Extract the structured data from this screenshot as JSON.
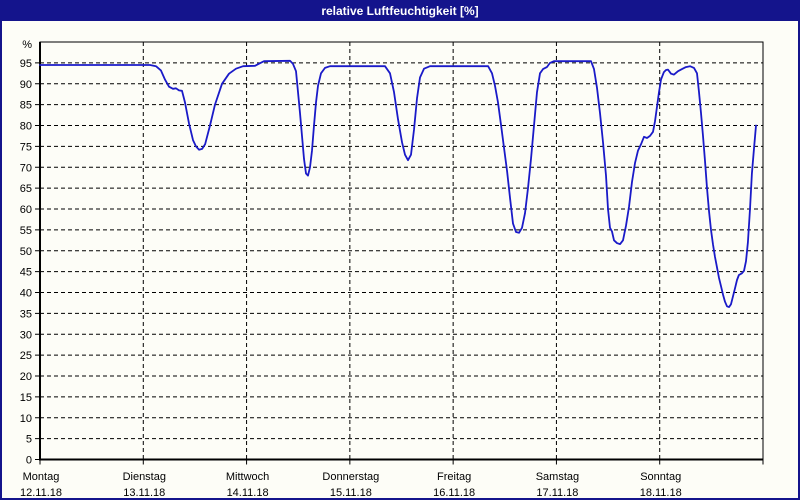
{
  "window": {
    "title": "relative Luftfeuchtigkeit [%]"
  },
  "colors": {
    "titlebar_bg": "#14148C",
    "window_border": "#14148C",
    "background": "#FDFDF7",
    "title_text": "#FFFFFF",
    "grid": "#000000",
    "axis_text": "#000000",
    "line": "#1A1AC8"
  },
  "chart_data": {
    "type": "line",
    "title": "relative Luftfeuchtigkeit [%]",
    "legend": "none",
    "grid": "dashed",
    "y_axis": {
      "unit_label": "%",
      "min": 0,
      "max": 100,
      "tick_step": 5,
      "tick_labels": [
        "0",
        "5",
        "10",
        "15",
        "20",
        "25",
        "30",
        "35",
        "40",
        "45",
        "50",
        "55",
        "60",
        "65",
        "70",
        "75",
        "80",
        "85",
        "90",
        "95"
      ]
    },
    "x_axis": {
      "unit": "days",
      "days": [
        {
          "name": "Montag",
          "date": "12.11.18"
        },
        {
          "name": "Dienstag",
          "date": "13.11.18"
        },
        {
          "name": "Mittwoch",
          "date": "14.11.18"
        },
        {
          "name": "Donnerstag",
          "date": "15.11.18"
        },
        {
          "name": "Freitag",
          "date": "16.11.18"
        },
        {
          "name": "Samstag",
          "date": "17.11.18"
        },
        {
          "name": "Sonntag",
          "date": "18.11.18"
        }
      ]
    },
    "series": [
      {
        "name": "relative Luftfeuchtigkeit",
        "unit": "%",
        "x_format": "days_since_monday_0000",
        "points": [
          [
            0,
            94.5
          ],
          [
            1.065,
            94.5
          ],
          [
            1.123,
            94.2
          ],
          [
            1.171,
            93.2
          ],
          [
            1.21,
            91
          ],
          [
            1.249,
            89.3
          ],
          [
            1.288,
            88.8
          ],
          [
            1.317,
            88.9
          ],
          [
            1.346,
            88.4
          ],
          [
            1.375,
            88.3
          ],
          [
            1.404,
            85.5
          ],
          [
            1.443,
            80.5
          ],
          [
            1.481,
            76.5
          ],
          [
            1.51,
            75
          ],
          [
            1.539,
            74.2
          ],
          [
            1.569,
            74.4
          ],
          [
            1.598,
            75.5
          ],
          [
            1.646,
            80
          ],
          [
            1.694,
            85
          ],
          [
            1.762,
            90
          ],
          [
            1.83,
            92.4
          ],
          [
            1.898,
            93.6
          ],
          [
            1.966,
            94.2
          ],
          [
            2.082,
            94.3
          ],
          [
            2.12,
            94.8
          ],
          [
            2.169,
            95.4
          ],
          [
            2.42,
            95.5
          ],
          [
            2.449,
            94.8
          ],
          [
            2.479,
            93
          ],
          [
            2.498,
            88
          ],
          [
            2.517,
            83
          ],
          [
            2.537,
            77.5
          ],
          [
            2.556,
            72
          ],
          [
            2.575,
            68.5
          ],
          [
            2.595,
            68
          ],
          [
            2.614,
            70
          ],
          [
            2.633,
            74
          ],
          [
            2.653,
            80
          ],
          [
            2.672,
            85.5
          ],
          [
            2.692,
            89.5
          ],
          [
            2.721,
            92.5
          ],
          [
            2.759,
            93.8
          ],
          [
            2.808,
            94.2
          ],
          [
            3.34,
            94.2
          ],
          [
            3.389,
            92.5
          ],
          [
            3.427,
            88
          ],
          [
            3.466,
            81.5
          ],
          [
            3.505,
            76
          ],
          [
            3.534,
            73
          ],
          [
            3.563,
            71.7
          ],
          [
            3.592,
            73
          ],
          [
            3.621,
            79
          ],
          [
            3.65,
            86.5
          ],
          [
            3.679,
            91.5
          ],
          [
            3.718,
            93.6
          ],
          [
            3.776,
            94.2
          ],
          [
            4.338,
            94.2
          ],
          [
            4.376,
            92.5
          ],
          [
            4.405,
            89.5
          ],
          [
            4.434,
            85.5
          ],
          [
            4.464,
            80
          ],
          [
            4.493,
            74.5
          ],
          [
            4.522,
            69
          ],
          [
            4.551,
            62.5
          ],
          [
            4.58,
            56.5
          ],
          [
            4.609,
            54.5
          ],
          [
            4.638,
            54.3
          ],
          [
            4.667,
            55.5
          ],
          [
            4.696,
            59
          ],
          [
            4.725,
            65
          ],
          [
            4.754,
            72
          ],
          [
            4.783,
            80
          ],
          [
            4.812,
            88
          ],
          [
            4.841,
            92.5
          ],
          [
            4.87,
            93.5
          ],
          [
            4.908,
            94
          ],
          [
            4.938,
            95
          ],
          [
            4.976,
            95.4
          ],
          [
            5.335,
            95.4
          ],
          [
            5.364,
            93.5
          ],
          [
            5.393,
            89
          ],
          [
            5.422,
            83
          ],
          [
            5.451,
            76
          ],
          [
            5.48,
            68
          ],
          [
            5.499,
            60
          ],
          [
            5.519,
            55.5
          ],
          [
            5.538,
            54.6
          ],
          [
            5.557,
            52.5
          ],
          [
            5.587,
            51.8
          ],
          [
            5.616,
            51.6
          ],
          [
            5.645,
            52.5
          ],
          [
            5.674,
            56
          ],
          [
            5.703,
            60.5
          ],
          [
            5.732,
            66.5
          ],
          [
            5.761,
            71
          ],
          [
            5.79,
            74
          ],
          [
            5.819,
            75.5
          ],
          [
            5.848,
            77.3
          ],
          [
            5.877,
            77
          ],
          [
            5.906,
            77.5
          ],
          [
            5.935,
            78.5
          ],
          [
            5.954,
            81
          ],
          [
            5.974,
            84.5
          ],
          [
            5.993,
            88
          ],
          [
            6.012,
            91
          ],
          [
            6.041,
            92.8
          ],
          [
            6.061,
            93.3
          ],
          [
            6.08,
            93.4
          ],
          [
            6.109,
            92.4
          ],
          [
            6.138,
            92.2
          ],
          [
            6.177,
            93
          ],
          [
            6.216,
            93.5
          ],
          [
            6.254,
            94
          ],
          [
            6.293,
            94.2
          ],
          [
            6.332,
            93.8
          ],
          [
            6.361,
            92.5
          ],
          [
            6.38,
            88
          ],
          [
            6.4,
            83
          ],
          [
            6.419,
            77.5
          ],
          [
            6.438,
            71.5
          ],
          [
            6.458,
            65
          ],
          [
            6.477,
            59.5
          ],
          [
            6.497,
            55
          ],
          [
            6.516,
            51.5
          ],
          [
            6.535,
            48.5
          ],
          [
            6.555,
            46
          ],
          [
            6.574,
            43.5
          ],
          [
            6.593,
            41.5
          ],
          [
            6.613,
            39.5
          ],
          [
            6.632,
            37.8
          ],
          [
            6.651,
            36.7
          ],
          [
            6.671,
            36.5
          ],
          [
            6.69,
            37.2
          ],
          [
            6.709,
            39
          ],
          [
            6.729,
            41
          ],
          [
            6.748,
            43
          ],
          [
            6.767,
            44.2
          ],
          [
            6.796,
            44.6
          ],
          [
            6.816,
            45.2
          ],
          [
            6.835,
            47.5
          ],
          [
            6.854,
            52
          ],
          [
            6.874,
            60
          ],
          [
            6.893,
            68.5
          ],
          [
            6.913,
            74.5
          ],
          [
            6.932,
            80
          ]
        ]
      }
    ]
  }
}
